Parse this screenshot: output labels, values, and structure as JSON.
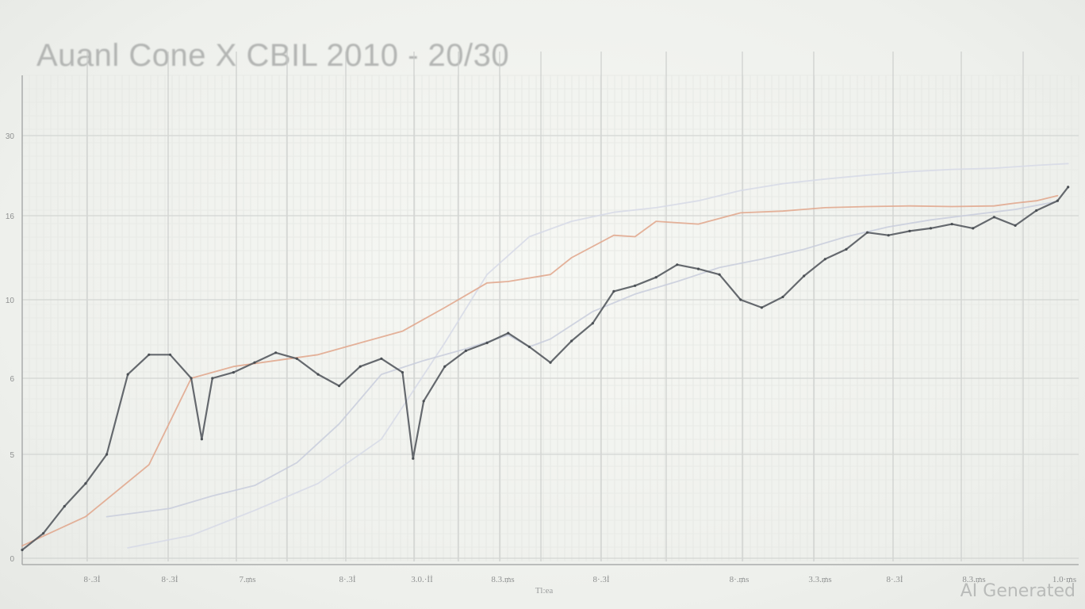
{
  "chart_data": {
    "type": "line",
    "title": "Auanl Cone X CBIL 2010 -  20/30",
    "xlabel": "Tl:ea",
    "ylabel": "",
    "x_tick_labels": [
      "8·.3İ",
      "8·.3İ",
      "7.₥s",
      "8·.3İ",
      "3.0.·İİ",
      "8.3.₥s",
      "8·.3İ",
      "8·.₥s",
      "3.3.₥s",
      "8·.3İ",
      "8.3.₥s",
      "1.0·₥s"
    ],
    "y_ticks": [
      0,
      5,
      6,
      10,
      16,
      30
    ],
    "y_tick_labels": [
      "0",
      "5",
      "6",
      "10",
      "16",
      "30"
    ],
    "xlim": [
      0,
      100
    ],
    "ylim": [
      0,
      30
    ],
    "grid": true,
    "series": [
      {
        "color": "#555a5f",
        "x": [
          0,
          2,
          4,
          6,
          8,
          10,
          12,
          14,
          16,
          17,
          18,
          20,
          22,
          24,
          26,
          28,
          30,
          32,
          34,
          36,
          37,
          38,
          40,
          42,
          44,
          46,
          48,
          50,
          52,
          54,
          56,
          58,
          60,
          62,
          64,
          66,
          68,
          70,
          72,
          74,
          76,
          78,
          80,
          82,
          84,
          86,
          88,
          90,
          92,
          94,
          96,
          98,
          99
        ],
        "values": [
          0.4,
          1.2,
          2.5,
          3.6,
          5.0,
          6.2,
          7.2,
          7.2,
          6.0,
          5.2,
          6.0,
          6.3,
          6.8,
          7.3,
          7.0,
          6.2,
          5.9,
          6.6,
          7.0,
          6.3,
          4.8,
          5.7,
          6.6,
          7.4,
          7.8,
          8.3,
          7.6,
          6.8,
          7.9,
          8.8,
          10.6,
          11.0,
          11.6,
          12.5,
          12.2,
          11.8,
          10.0,
          9.6,
          10.2,
          11.7,
          12.9,
          13.6,
          14.8,
          14.6,
          14.9,
          15.1,
          15.4,
          15.1,
          15.9,
          15.3,
          16.9,
          18.6,
          21.0
        ]
      },
      {
        "color": "#e0a48a",
        "x": [
          0,
          6,
          12,
          16,
          20,
          24,
          28,
          32,
          36,
          40,
          44,
          46,
          50,
          52,
          56,
          58,
          60,
          64,
          68,
          72,
          76,
          80,
          84,
          88,
          92,
          94,
          96,
          98
        ],
        "values": [
          0.6,
          2.0,
          4.5,
          6.0,
          6.6,
          6.9,
          7.2,
          7.8,
          8.4,
          9.6,
          11.2,
          11.3,
          11.8,
          13.0,
          14.6,
          14.5,
          15.6,
          15.4,
          16.5,
          16.8,
          17.4,
          17.6,
          17.7,
          17.6,
          17.7,
          18.2,
          18.6,
          19.5
        ]
      },
      {
        "color": "#c8ccdc",
        "x": [
          8,
          14,
          18,
          22,
          26,
          30,
          34,
          38,
          42,
          46,
          48,
          50,
          54,
          58,
          62,
          66,
          70,
          74,
          78,
          82,
          86,
          90,
          94,
          98
        ],
        "values": [
          2.0,
          2.4,
          3.0,
          3.5,
          4.6,
          5.4,
          6.2,
          6.9,
          7.5,
          8.2,
          7.6,
          8.0,
          9.4,
          10.4,
          11.3,
          12.3,
          12.9,
          13.6,
          14.5,
          15.2,
          15.7,
          16.2,
          17.1,
          18.5
        ]
      },
      {
        "color": "#d6d9e6",
        "x": [
          10,
          16,
          22,
          28,
          34,
          40,
          44,
          48,
          52,
          56,
          60,
          64,
          68,
          72,
          76,
          80,
          84,
          88,
          92,
          96,
          99
        ],
        "values": [
          0.5,
          1.1,
          2.3,
          3.6,
          5.2,
          7.8,
          11.8,
          14.5,
          15.6,
          16.6,
          17.4,
          18.6,
          20.4,
          21.6,
          22.4,
          23.1,
          23.7,
          24.1,
          24.3,
          24.8,
          25.1
        ]
      }
    ]
  },
  "watermark": "AI Generated"
}
